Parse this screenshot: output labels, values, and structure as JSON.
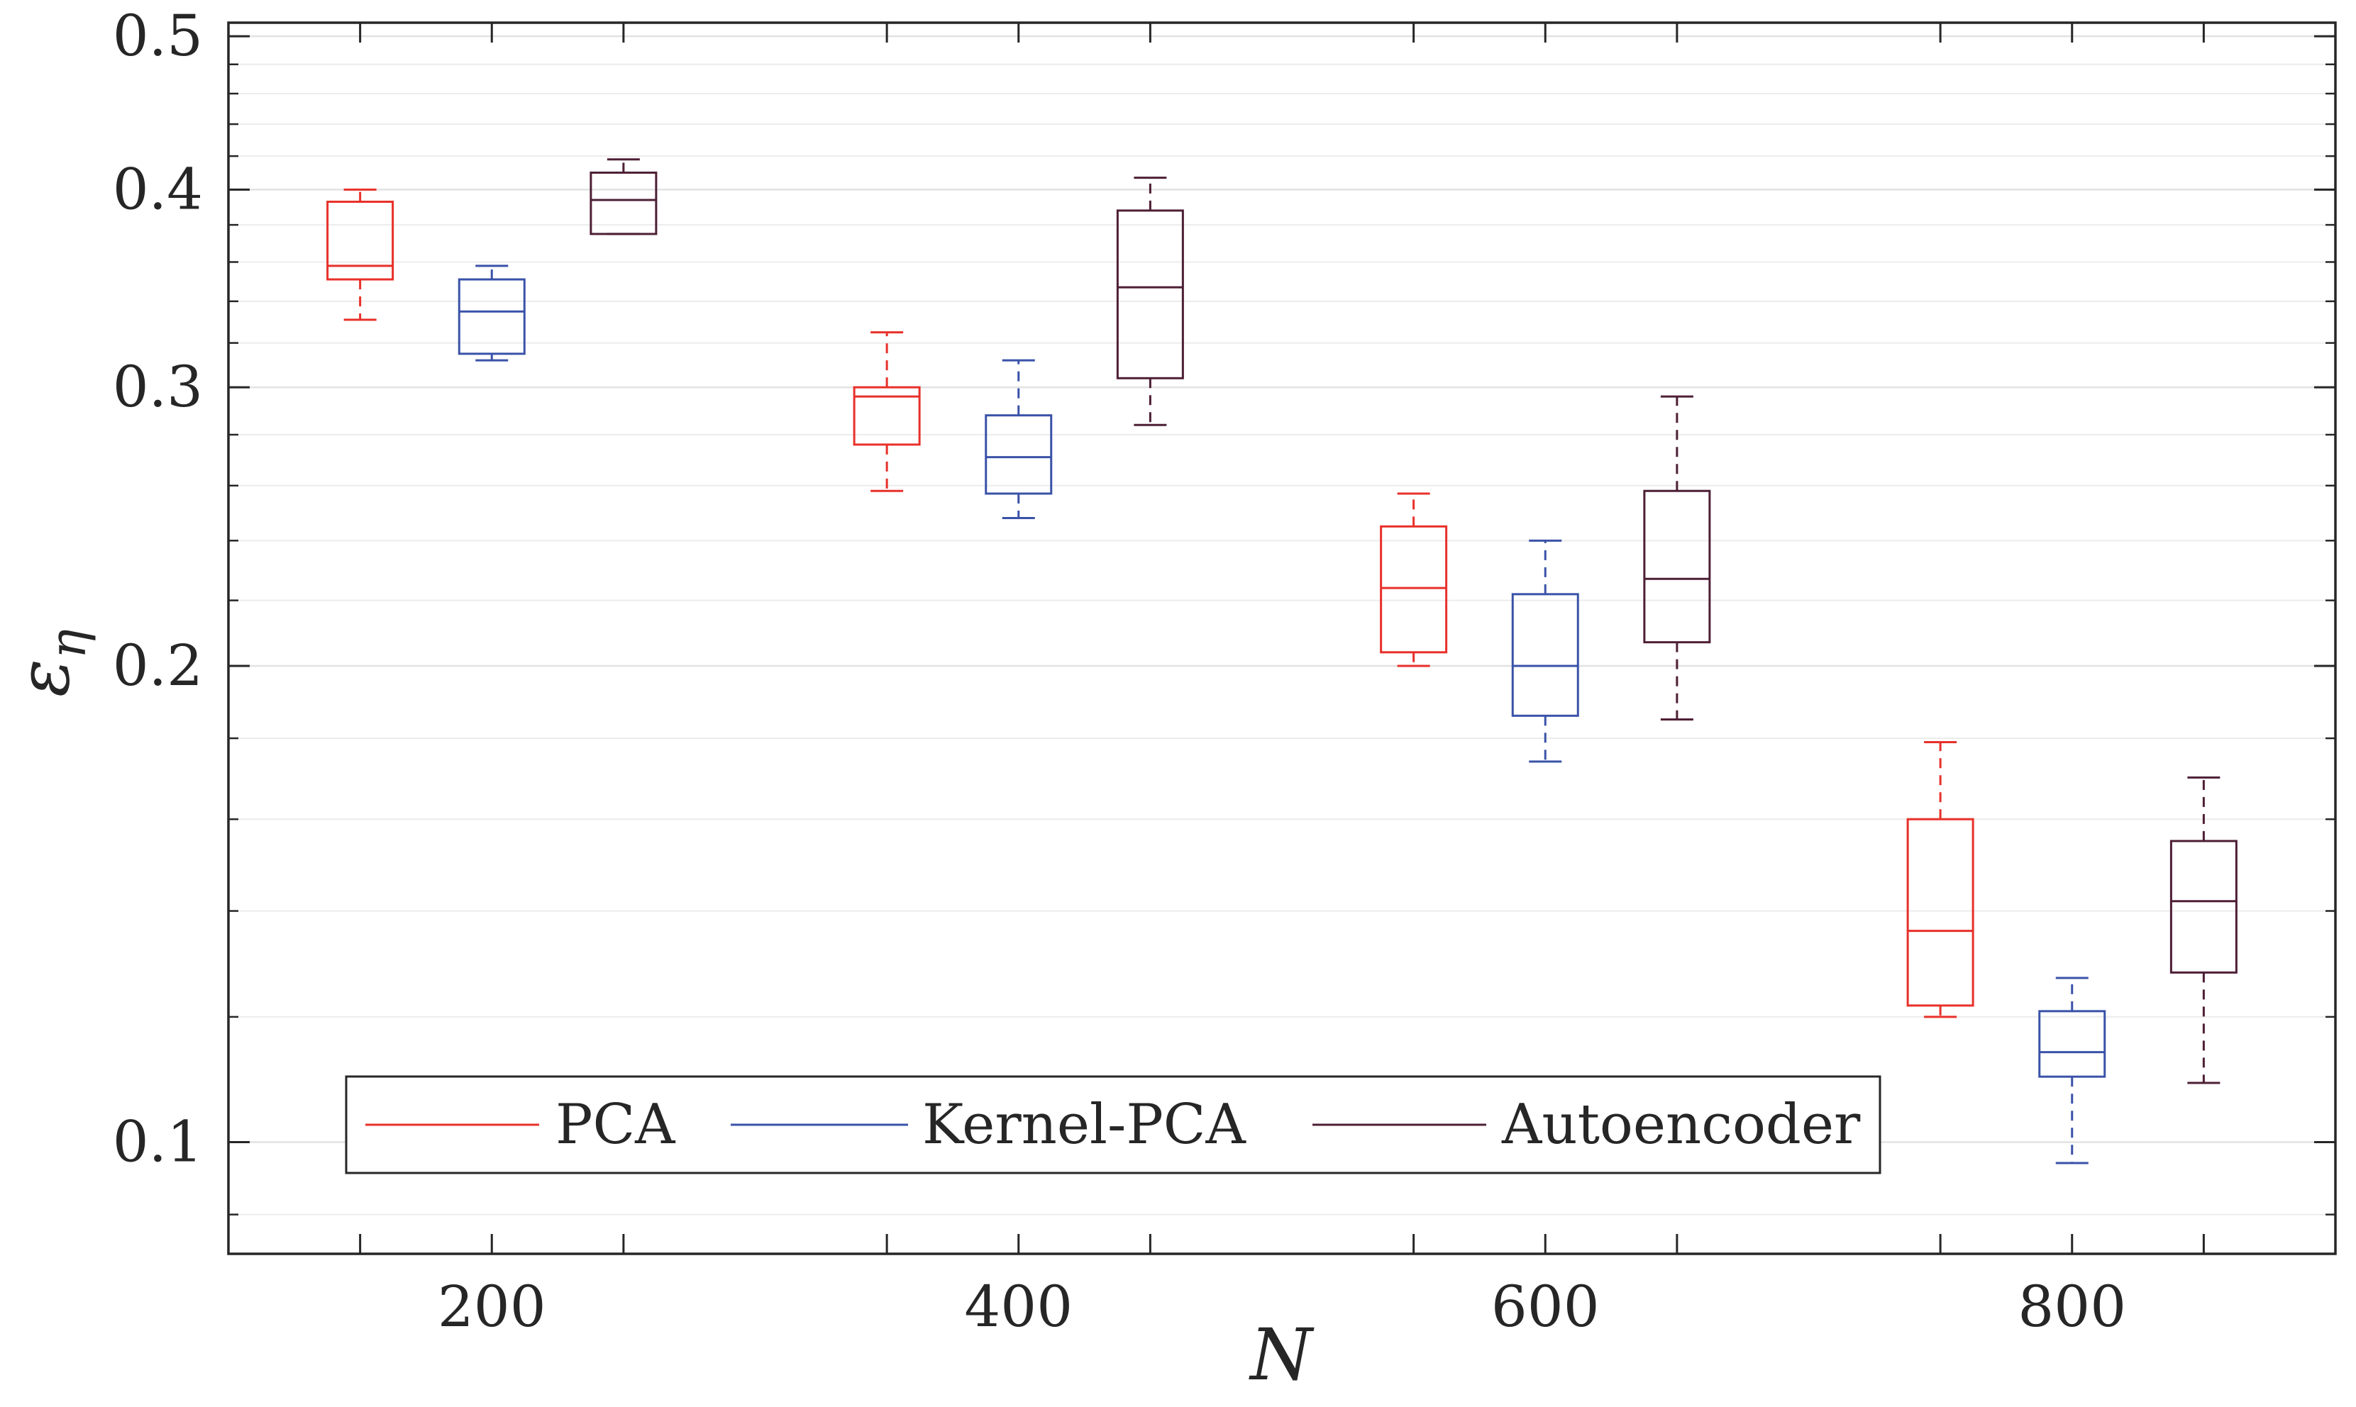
{
  "chart_data": {
    "type": "boxplot",
    "title": "",
    "xlabel": "N",
    "ylabel": "ε",
    "ylabel_subscript": "η",
    "yscale": "log",
    "xlim": [
      100,
      900
    ],
    "ylim": [
      0.085,
      0.51
    ],
    "xticks": [
      200,
      400,
      600,
      800
    ],
    "xtick_labels": [
      "200",
      "400",
      "600",
      "800"
    ],
    "yticks": [
      0.1,
      0.2,
      0.3,
      0.4,
      0.5
    ],
    "ytick_labels": [
      "0.1",
      "0.2",
      "0.3",
      "0.4",
      "0.5"
    ],
    "grid": true,
    "legend_position": "bottom-left",
    "series": [
      {
        "name": "PCA",
        "color": "#e8302a",
        "boxes": [
          {
            "x": 150,
            "whisker_low": 0.331,
            "q1": 0.351,
            "median": 0.358,
            "q3": 0.393,
            "whisker_high": 0.4
          },
          {
            "x": 350,
            "whisker_low": 0.258,
            "q1": 0.276,
            "median": 0.296,
            "q3": 0.3,
            "whisker_high": 0.325
          },
          {
            "x": 550,
            "whisker_low": 0.2,
            "q1": 0.204,
            "median": 0.224,
            "q3": 0.245,
            "whisker_high": 0.257
          },
          {
            "x": 750,
            "whisker_low": 0.12,
            "q1": 0.122,
            "median": 0.136,
            "q3": 0.16,
            "whisker_high": 0.179
          }
        ]
      },
      {
        "name": "Kernel-PCA",
        "color": "#3a52a8",
        "boxes": [
          {
            "x": 200,
            "whisker_low": 0.312,
            "q1": 0.315,
            "median": 0.335,
            "q3": 0.351,
            "whisker_high": 0.358
          },
          {
            "x": 400,
            "whisker_low": 0.248,
            "q1": 0.257,
            "median": 0.271,
            "q3": 0.288,
            "whisker_high": 0.312
          },
          {
            "x": 600,
            "whisker_low": 0.174,
            "q1": 0.186,
            "median": 0.2,
            "q3": 0.222,
            "whisker_high": 0.24
          },
          {
            "x": 800,
            "whisker_low": 0.097,
            "q1": 0.11,
            "median": 0.114,
            "q3": 0.121,
            "whisker_high": 0.127
          }
        ]
      },
      {
        "name": "Autoencoder",
        "color": "#4d1f35",
        "boxes": [
          {
            "x": 250,
            "whisker_low": 0.375,
            "q1": 0.375,
            "median": 0.394,
            "q3": 0.41,
            "whisker_high": 0.418
          },
          {
            "x": 450,
            "whisker_low": 0.284,
            "q1": 0.304,
            "median": 0.347,
            "q3": 0.388,
            "whisker_high": 0.407
          },
          {
            "x": 650,
            "whisker_low": 0.185,
            "q1": 0.207,
            "median": 0.227,
            "q3": 0.258,
            "whisker_high": 0.296
          },
          {
            "x": 850,
            "whisker_low": 0.109,
            "q1": 0.128,
            "median": 0.142,
            "q3": 0.155,
            "whisker_high": 0.17
          }
        ]
      }
    ]
  }
}
